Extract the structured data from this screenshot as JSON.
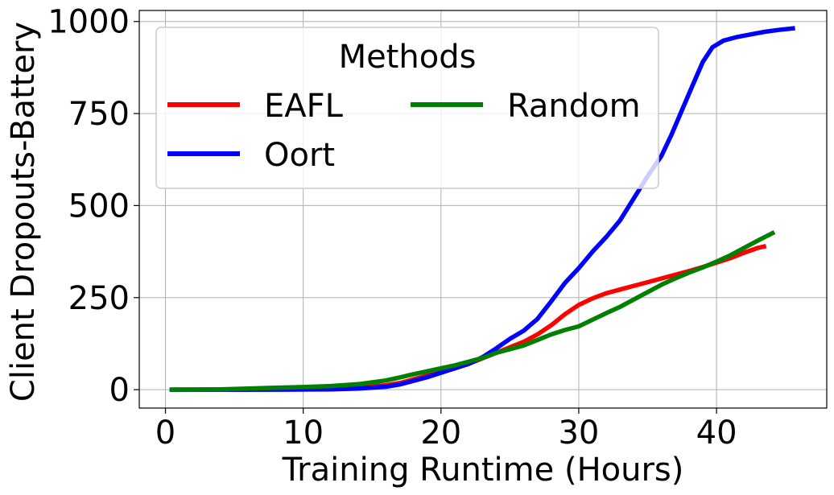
{
  "chart_data": {
    "type": "line",
    "xlabel": "Training Runtime (Hours)",
    "ylabel": "Client Dropouts-Battery",
    "xlim": [
      -1.9,
      48
    ],
    "ylim": [
      -50,
      1030
    ],
    "xticks": [
      0,
      10,
      20,
      30,
      40
    ],
    "yticks": [
      0,
      250,
      500,
      750,
      1000
    ],
    "xtick_labels": [
      "0",
      "10",
      "20",
      "30",
      "40"
    ],
    "ytick_labels": [
      "0",
      "250",
      "500",
      "750",
      "1000"
    ],
    "grid": true,
    "legend": {
      "title": "Methods",
      "placement": "top-left",
      "columns": 2
    },
    "series": [
      {
        "name": "EAFL",
        "color": "#ff0000",
        "points": [
          [
            0.3,
            0
          ],
          [
            4,
            0
          ],
          [
            8,
            1
          ],
          [
            12,
            3
          ],
          [
            14,
            6
          ],
          [
            16,
            12
          ],
          [
            17,
            18
          ],
          [
            18,
            28
          ],
          [
            19,
            38
          ],
          [
            20,
            48
          ],
          [
            21,
            58
          ],
          [
            22,
            70
          ],
          [
            23,
            85
          ],
          [
            24,
            100
          ],
          [
            25,
            115
          ],
          [
            26,
            130
          ],
          [
            27,
            150
          ],
          [
            28,
            175
          ],
          [
            29,
            205
          ],
          [
            30,
            230
          ],
          [
            31,
            248
          ],
          [
            32,
            262
          ],
          [
            33,
            272
          ],
          [
            34,
            282
          ],
          [
            35,
            292
          ],
          [
            36,
            302
          ],
          [
            37,
            312
          ],
          [
            38,
            322
          ],
          [
            39,
            333
          ],
          [
            40,
            345
          ],
          [
            41,
            357
          ],
          [
            42,
            372
          ],
          [
            43,
            385
          ],
          [
            43.6,
            390
          ]
        ]
      },
      {
        "name": "Oort",
        "color": "#0000ff",
        "points": [
          [
            0.3,
            0
          ],
          [
            4,
            0
          ],
          [
            8,
            0
          ],
          [
            12,
            1
          ],
          [
            14,
            3
          ],
          [
            16,
            8
          ],
          [
            17,
            14
          ],
          [
            18,
            24
          ],
          [
            19,
            34
          ],
          [
            20,
            46
          ],
          [
            21,
            58
          ],
          [
            22,
            70
          ],
          [
            23,
            88
          ],
          [
            24,
            112
          ],
          [
            25,
            138
          ],
          [
            26,
            160
          ],
          [
            27,
            192
          ],
          [
            28,
            240
          ],
          [
            29,
            290
          ],
          [
            30,
            330
          ],
          [
            31,
            375
          ],
          [
            32,
            415
          ],
          [
            33,
            460
          ],
          [
            34,
            520
          ],
          [
            35,
            580
          ],
          [
            36,
            635
          ],
          [
            36.7,
            690
          ],
          [
            37.5,
            760
          ],
          [
            38.3,
            830
          ],
          [
            39,
            890
          ],
          [
            39.7,
            930
          ],
          [
            40.5,
            948
          ],
          [
            41.5,
            958
          ],
          [
            42.5,
            965
          ],
          [
            43.5,
            972
          ],
          [
            44.5,
            977
          ],
          [
            45.7,
            982
          ]
        ]
      },
      {
        "name": "Random",
        "color": "#008000",
        "points": [
          [
            0.3,
            0
          ],
          [
            4,
            1
          ],
          [
            6,
            3
          ],
          [
            8,
            5
          ],
          [
            10,
            7
          ],
          [
            12,
            10
          ],
          [
            14,
            15
          ],
          [
            16,
            25
          ],
          [
            17,
            33
          ],
          [
            18,
            42
          ],
          [
            19,
            50
          ],
          [
            20,
            58
          ],
          [
            21,
            66
          ],
          [
            22,
            76
          ],
          [
            23,
            86
          ],
          [
            24,
            100
          ],
          [
            25,
            110
          ],
          [
            26,
            120
          ],
          [
            27,
            135
          ],
          [
            28,
            150
          ],
          [
            29,
            162
          ],
          [
            30,
            172
          ],
          [
            31,
            190
          ],
          [
            32,
            208
          ],
          [
            33,
            225
          ],
          [
            34,
            245
          ],
          [
            35,
            265
          ],
          [
            36,
            285
          ],
          [
            37,
            302
          ],
          [
            38,
            318
          ],
          [
            39,
            332
          ],
          [
            40,
            348
          ],
          [
            41,
            365
          ],
          [
            42,
            385
          ],
          [
            43,
            405
          ],
          [
            44.2,
            428
          ]
        ]
      }
    ]
  }
}
